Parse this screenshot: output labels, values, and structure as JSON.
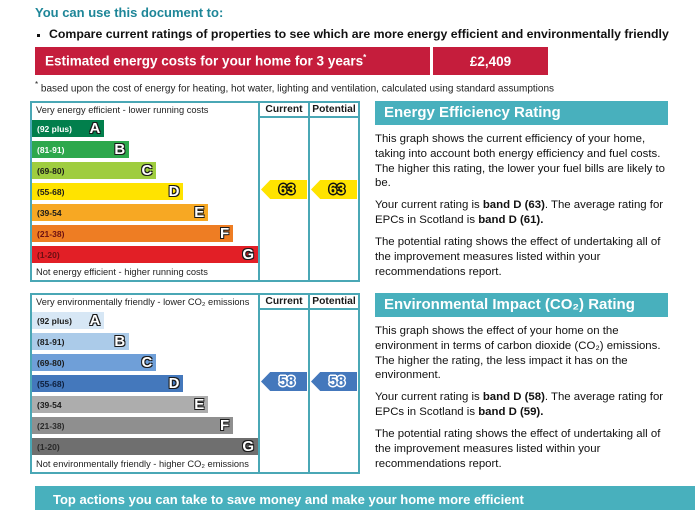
{
  "page": {
    "intro_heading": "You can use this document to:",
    "bullet_text": "Compare current ratings of properties to see which are more energy efficient and environmentally friendly",
    "cost_banner": {
      "label": "Estimated energy costs for your home for 3 years",
      "asterisk": "*",
      "value": "£2,409",
      "bg_color": "#c51d3c"
    },
    "footnote_marker": "*",
    "footnote_text": " based upon the cost of energy for heating, hot water, lighting and ventilation, calculated using standard assumptions",
    "bottom_banner": "Top actions you can take to save money and make your home more efficient",
    "accent_teal": "#48b0bd",
    "border_teal": "#4aa7b5"
  },
  "charts": [
    {
      "panel_title": "Energy Efficiency Rating",
      "top_caption": "Very energy efficient - lower running costs",
      "bottom_caption": "Not energy efficient - higher running costs",
      "columns": {
        "current": "Current",
        "potential": "Potential"
      },
      "current": {
        "value": "63",
        "band": "D"
      },
      "potential": {
        "value": "63",
        "band": "D"
      },
      "arrow_color": "#ffe300",
      "arrow_outline": "#111111",
      "bands": [
        {
          "letter": "A",
          "range": "(92 plus)",
          "color": "#027f4c",
          "width_pct": 32,
          "range_color": "#ffffff"
        },
        {
          "letter": "B",
          "range": "(81-91)",
          "color": "#2da84c",
          "width_pct": 43,
          "range_color": "#ffffff"
        },
        {
          "letter": "C",
          "range": "(69-80)",
          "color": "#9fcd3f",
          "width_pct": 55,
          "range_color": "#1a1a1a"
        },
        {
          "letter": "D",
          "range": "(55-68)",
          "color": "#ffe300",
          "width_pct": 67,
          "range_color": "#1a1a1a"
        },
        {
          "letter": "E",
          "range": "(39-54",
          "color": "#f7a823",
          "width_pct": 78,
          "range_color": "#1a1a1a"
        },
        {
          "letter": "F",
          "range": "(21-38)",
          "color": "#ee7d23",
          "width_pct": 89,
          "range_color": "#6b0f12"
        },
        {
          "letter": "G",
          "range": "(1-20)",
          "color": "#e21f26",
          "width_pct": 100,
          "range_color": "#6b0f12"
        }
      ],
      "panel": {
        "p1": "This graph shows the current efficiency of your home, taking into account both energy efficiency and fuel costs. The higher this rating, the lower your fuel bills are likely to be.",
        "p2_text1": "Your current rating is ",
        "p2_bold1": "band D (63)",
        "p2_text2": ". The average rating for EPCs in Scotland is ",
        "p2_bold2": "band D (61).",
        "p3": "The potential rating shows the effect of undertaking all of the improvement measures listed within your recommendations report."
      }
    },
    {
      "panel_title": "Environmental Impact (CO₂) Rating",
      "top_caption": "Very environmentally friendly - lower CO₂ emissions",
      "bottom_caption": "Not environmentally friendly - higher CO₂ emissions",
      "columns": {
        "current": "Current",
        "potential": "Potential"
      },
      "current": {
        "value": "58",
        "band": "D"
      },
      "potential": {
        "value": "58",
        "band": "D"
      },
      "arrow_color": "#4478bc",
      "arrow_outline": "#ffffff",
      "bands": [
        {
          "letter": "A",
          "range": "(92 plus)",
          "color": "#d7e7f5",
          "width_pct": 32,
          "range_color": "#1a1a1a"
        },
        {
          "letter": "B",
          "range": "(81-91)",
          "color": "#abcbe9",
          "width_pct": 43,
          "range_color": "#1a1a1a"
        },
        {
          "letter": "C",
          "range": "(69-80)",
          "color": "#6f9fd8",
          "width_pct": 55,
          "range_color": "#1a1a1a"
        },
        {
          "letter": "D",
          "range": "(55-68)",
          "color": "#4478bc",
          "width_pct": 67,
          "range_color": "#0e1f3d"
        },
        {
          "letter": "E",
          "range": "(39-54",
          "color": "#adadad",
          "width_pct": 78,
          "range_color": "#1a1a1a"
        },
        {
          "letter": "F",
          "range": "(21-38)",
          "color": "#8f8f8f",
          "width_pct": 89,
          "range_color": "#2a2a2a"
        },
        {
          "letter": "G",
          "range": "(1-20)",
          "color": "#6f6f6f",
          "width_pct": 100,
          "range_color": "#2a2a2a"
        }
      ],
      "panel": {
        "p1": "This graph shows the effect of your home on the environment in terms of carbon dioxide (CO₂) emissions. The higher the rating, the less impact it has on the environment.",
        "p2_text1": "Your current rating is ",
        "p2_bold1": "band D (58)",
        "p2_text2": ". The average rating for EPCs in Scotland is ",
        "p2_bold2": "band D (59).",
        "p3": "The potential rating shows the effect of undertaking all of the improvement measures listed within your recommendations report."
      }
    }
  ]
}
